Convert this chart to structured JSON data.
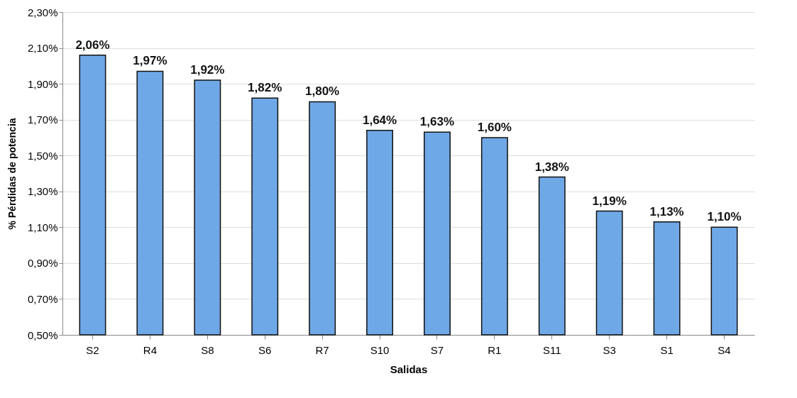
{
  "chart_data": {
    "type": "bar",
    "xlabel": "Salidas",
    "ylabel": "% Pérdidas de potencia",
    "categories": [
      "S2",
      "R4",
      "S8",
      "S6",
      "R7",
      "S10",
      "S7",
      "R1",
      "S11",
      "S3",
      "S1",
      "S4"
    ],
    "values": [
      2.06,
      1.97,
      1.92,
      1.82,
      1.8,
      1.64,
      1.63,
      1.6,
      1.38,
      1.19,
      1.13,
      1.1
    ],
    "value_labels": [
      "2,06%",
      "1,97%",
      "1,92%",
      "1,82%",
      "1,80%",
      "1,64%",
      "1,63%",
      "1,60%",
      "1,38%",
      "1,19%",
      "1,13%",
      "1,10%"
    ],
    "color": "#6fa8e6",
    "ylim": [
      0.5,
      2.3
    ],
    "yticks": [
      {
        "value": 0.5,
        "label": "0,50%"
      },
      {
        "value": 0.7,
        "label": "0,70%"
      },
      {
        "value": 0.9,
        "label": "0,90%"
      },
      {
        "value": 1.1,
        "label": "1,10%"
      },
      {
        "value": 1.3,
        "label": "1,30%"
      },
      {
        "value": 1.5,
        "label": "1,50%"
      },
      {
        "value": 1.7,
        "label": "1,70%"
      },
      {
        "value": 1.9,
        "label": "1,90%"
      },
      {
        "value": 2.1,
        "label": "2,10%"
      },
      {
        "value": 2.3,
        "label": "2,30%"
      }
    ],
    "grid": "y"
  }
}
